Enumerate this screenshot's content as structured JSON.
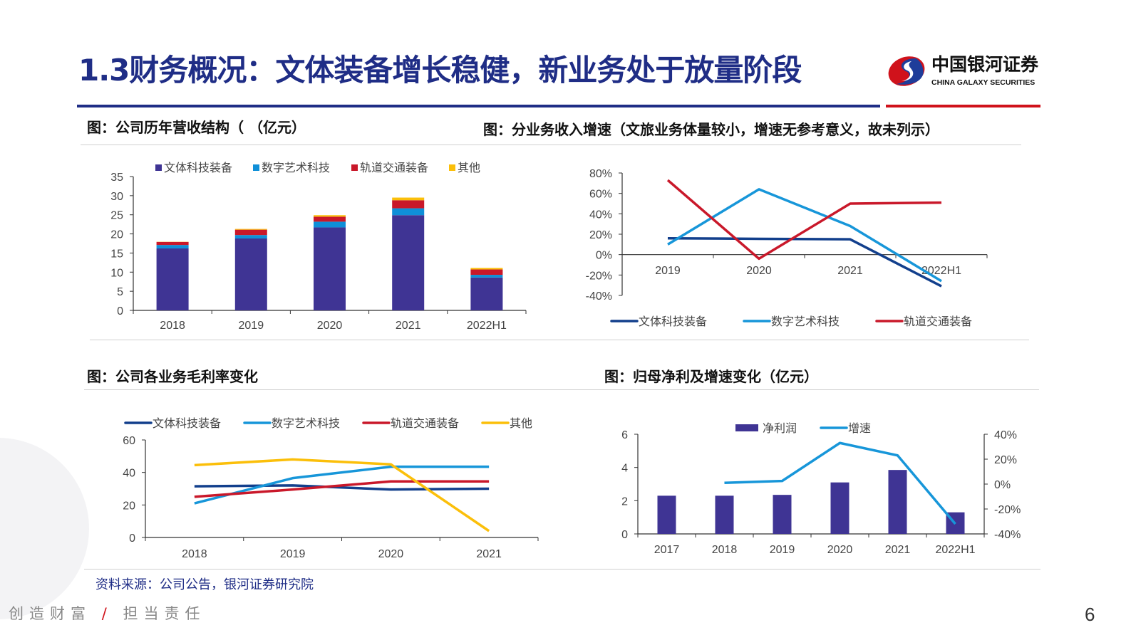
{
  "header": {
    "title": "1.3财务概况：文体装备增长稳健，新业务处于放量阶段",
    "logo_cn": "中国银河证券",
    "logo_en": "CHINA GALAXY SECURITIES",
    "rule_colors": [
      "#1f2d86",
      "#d0121b"
    ]
  },
  "sections": {
    "revenue_structure": "图：公司历年营收结构（ （亿元）",
    "segment_growth": "图：分业务收入增速（文旅业务体量较小，增速无参考意义，故未列示）",
    "gross_margin": "图：公司各业务毛利率变化",
    "net_profit": "图：归母净利及增速变化（亿元）"
  },
  "footer": {
    "source": "资料来源：公司公告，银河证券研究院",
    "slogan_left": "创造财富",
    "slogan_sep": "/",
    "slogan_right": "担当责任",
    "page_number": "6"
  },
  "chart_data": [
    {
      "type": "bar",
      "stacked": true,
      "categories": [
        "2018",
        "2019",
        "2020",
        "2021",
        "2022H1"
      ],
      "ylim": [
        0,
        35
      ],
      "yticks": [
        0,
        5,
        10,
        15,
        20,
        25,
        30,
        35
      ],
      "legend": "top",
      "series": [
        {
          "name": "文体科技装备",
          "color": "#3f3494",
          "values": [
            16.2,
            18.8,
            21.7,
            24.9,
            8.6
          ]
        },
        {
          "name": "数字艺术科技",
          "color": "#0f8fd8",
          "values": [
            0.9,
            0.9,
            1.5,
            1.8,
            0.7
          ]
        },
        {
          "name": "轨道交通装备",
          "color": "#c9182a",
          "values": [
            0.8,
            1.4,
            1.3,
            2.1,
            1.4
          ]
        },
        {
          "name": "其他",
          "color": "#fbbf0a",
          "values": [
            0.05,
            0.2,
            0.4,
            0.7,
            0.4
          ]
        }
      ]
    },
    {
      "type": "line",
      "categories": [
        "2019",
        "2020",
        "2021",
        "2022H1"
      ],
      "ylim": [
        -40,
        80
      ],
      "yticks": [
        -40,
        -20,
        0,
        20,
        40,
        60,
        80
      ],
      "yunit": "%",
      "legend": "bottom",
      "series": [
        {
          "name": "文体科技装备",
          "color": "#123f8c",
          "values": [
            16,
            15.5,
            15,
            -31
          ]
        },
        {
          "name": "数字艺术科技",
          "color": "#1796d9",
          "values": [
            10,
            64,
            28,
            -26
          ]
        },
        {
          "name": "轨道交通装备",
          "color": "#c9182a",
          "values": [
            73,
            -4,
            50,
            51
          ]
        }
      ]
    },
    {
      "type": "line",
      "categories": [
        "2018",
        "2019",
        "2020",
        "2021"
      ],
      "ylim": [
        0,
        60
      ],
      "yticks": [
        0,
        20,
        40,
        60
      ],
      "legend": "top",
      "series": [
        {
          "name": "文体科技装备",
          "color": "#123f8c",
          "values": [
            31.5,
            32,
            29.5,
            30
          ]
        },
        {
          "name": "数字艺术科技",
          "color": "#1796d9",
          "values": [
            21,
            36.5,
            43.5,
            43.5
          ]
        },
        {
          "name": "轨道交通装备",
          "color": "#c9182a",
          "values": [
            25,
            29.5,
            34.5,
            34.5
          ]
        },
        {
          "name": "其他",
          "color": "#fbbf0a",
          "values": [
            44.5,
            48,
            45,
            4
          ]
        }
      ]
    },
    {
      "type": "bar+line",
      "categories": [
        "2017",
        "2018",
        "2019",
        "2020",
        "2021",
        "2022H1"
      ],
      "ylim": [
        0,
        6
      ],
      "yticks": [
        0,
        2,
        4,
        6
      ],
      "y2lim": [
        -40,
        40
      ],
      "y2ticks": [
        -40,
        -20,
        0,
        20,
        40
      ],
      "y2unit": "%",
      "legend": "top",
      "series": [
        {
          "name": "净利润",
          "type": "bar",
          "axis": "left",
          "color": "#3f3494",
          "values": [
            2.3,
            2.3,
            2.35,
            3.1,
            3.85,
            1.3
          ]
        },
        {
          "name": "增速",
          "type": "line",
          "axis": "right",
          "color": "#1796d9",
          "values": [
            null,
            1,
            2.5,
            33,
            23,
            -32
          ]
        }
      ]
    }
  ]
}
